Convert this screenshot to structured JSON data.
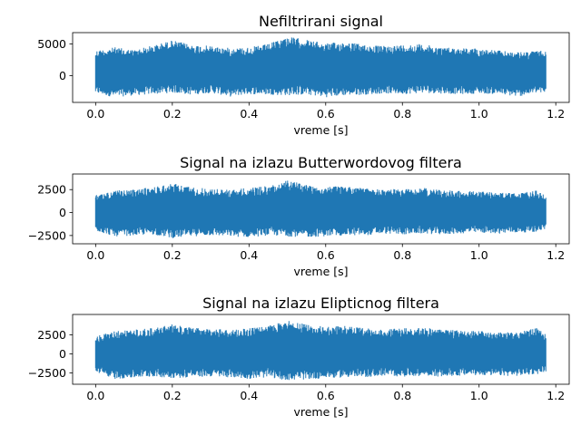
{
  "chart_data": [
    {
      "type": "line",
      "title": "Nefiltrirani signal",
      "xlabel": "vreme [s]",
      "ylabel": "",
      "xlim": [
        -0.06,
        1.235
      ],
      "ylim": [
        -4200,
        6800
      ],
      "xticks": [
        0.0,
        0.2,
        0.4,
        0.6,
        0.8,
        1.0,
        1.2
      ],
      "xtick_labels": [
        "0.0",
        "0.2",
        "0.4",
        "0.6",
        "0.8",
        "1.0",
        "1.2"
      ],
      "yticks": [
        5000,
        0
      ],
      "ytick_labels": [
        "5000",
        "0"
      ],
      "color": "#1f77b4",
      "grid": false,
      "envelope": {
        "x": [
          0.0,
          0.05,
          0.1,
          0.15,
          0.2,
          0.25,
          0.3,
          0.35,
          0.4,
          0.45,
          0.5,
          0.55,
          0.6,
          0.65,
          0.7,
          0.75,
          0.8,
          0.85,
          0.9,
          0.95,
          1.0,
          1.05,
          1.1,
          1.15,
          1.175
        ],
        "upper": [
          4000,
          4500,
          4100,
          4800,
          5600,
          4900,
          4700,
          4400,
          4500,
          5000,
          6200,
          5700,
          5100,
          5400,
          4900,
          4700,
          4900,
          5000,
          4500,
          4400,
          4300,
          4000,
          3700,
          3900,
          4000
        ],
        "lower": [
          -2800,
          -3400,
          -3100,
          -2900,
          -2700,
          -3000,
          -2700,
          -3300,
          -2900,
          -3000,
          -3100,
          -3000,
          -3400,
          -3100,
          -3000,
          -2800,
          -2900,
          -2700,
          -2800,
          -2900,
          -2800,
          -2900,
          -3300,
          -2700,
          -2800
        ]
      }
    },
    {
      "type": "line",
      "title": "Signal na izlazu Butterwordovog filtera",
      "xlabel": "vreme [s]",
      "ylabel": "",
      "xlim": [
        -0.06,
        1.235
      ],
      "ylim": [
        -3400,
        4200
      ],
      "xticks": [
        0.0,
        0.2,
        0.4,
        0.6,
        0.8,
        1.0,
        1.2
      ],
      "xtick_labels": [
        "0.0",
        "0.2",
        "0.4",
        "0.6",
        "0.8",
        "1.0",
        "1.2"
      ],
      "yticks": [
        2500,
        0,
        -2500
      ],
      "ytick_labels": [
        "2500",
        "0",
        "−2500"
      ],
      "color": "#1f77b4",
      "grid": false,
      "envelope": {
        "x": [
          0.0,
          0.05,
          0.1,
          0.15,
          0.2,
          0.25,
          0.3,
          0.35,
          0.4,
          0.45,
          0.5,
          0.55,
          0.6,
          0.65,
          0.7,
          0.75,
          0.8,
          0.85,
          0.9,
          0.95,
          1.0,
          1.05,
          1.1,
          1.15,
          1.175
        ],
        "upper": [
          1900,
          2400,
          2500,
          2800,
          3200,
          2800,
          2600,
          2500,
          2700,
          2900,
          3500,
          3100,
          2800,
          2900,
          2700,
          2500,
          2600,
          2700,
          2500,
          2400,
          2300,
          2200,
          2100,
          2400,
          1800
        ],
        "lower": [
          -2000,
          -2600,
          -2500,
          -2400,
          -2800,
          -2600,
          -2500,
          -2600,
          -2700,
          -2500,
          -2600,
          -2700,
          -2600,
          -2500,
          -2500,
          -2300,
          -2400,
          -2300,
          -2400,
          -2300,
          -2200,
          -2300,
          -2200,
          -2100,
          -1800
        ]
      }
    },
    {
      "type": "line",
      "title": "Signal na izlazu Elipticnog filtera",
      "xlabel": "vreme [s]",
      "ylabel": "",
      "xlim": [
        -0.06,
        1.235
      ],
      "ylim": [
        -4000,
        5200
      ],
      "xticks": [
        0.0,
        0.2,
        0.4,
        0.6,
        0.8,
        1.0,
        1.2
      ],
      "xtick_labels": [
        "0.0",
        "0.2",
        "0.4",
        "0.6",
        "0.8",
        "1.0",
        "1.2"
      ],
      "yticks": [
        2500,
        0,
        -2500
      ],
      "ytick_labels": [
        "2500",
        "0",
        "−2500"
      ],
      "color": "#1f77b4",
      "grid": false,
      "envelope": {
        "x": [
          0.0,
          0.05,
          0.1,
          0.15,
          0.2,
          0.25,
          0.3,
          0.35,
          0.4,
          0.45,
          0.5,
          0.55,
          0.6,
          0.65,
          0.7,
          0.75,
          0.8,
          0.85,
          0.9,
          0.95,
          1.0,
          1.05,
          1.1,
          1.15,
          1.175
        ],
        "upper": [
          2300,
          3000,
          3200,
          3400,
          3900,
          3500,
          3300,
          3200,
          3400,
          3700,
          4400,
          3900,
          3600,
          3700,
          3400,
          3200,
          3400,
          3500,
          3200,
          3100,
          3000,
          2900,
          3000,
          3400,
          2600
        ],
        "lower": [
          -2400,
          -3300,
          -3200,
          -3000,
          -3200,
          -3100,
          -3000,
          -3100,
          -3300,
          -3100,
          -3500,
          -3400,
          -3200,
          -3100,
          -3100,
          -2900,
          -3000,
          -2900,
          -3000,
          -2900,
          -2800,
          -2900,
          -2900,
          -2700,
          -2300
        ]
      }
    }
  ]
}
